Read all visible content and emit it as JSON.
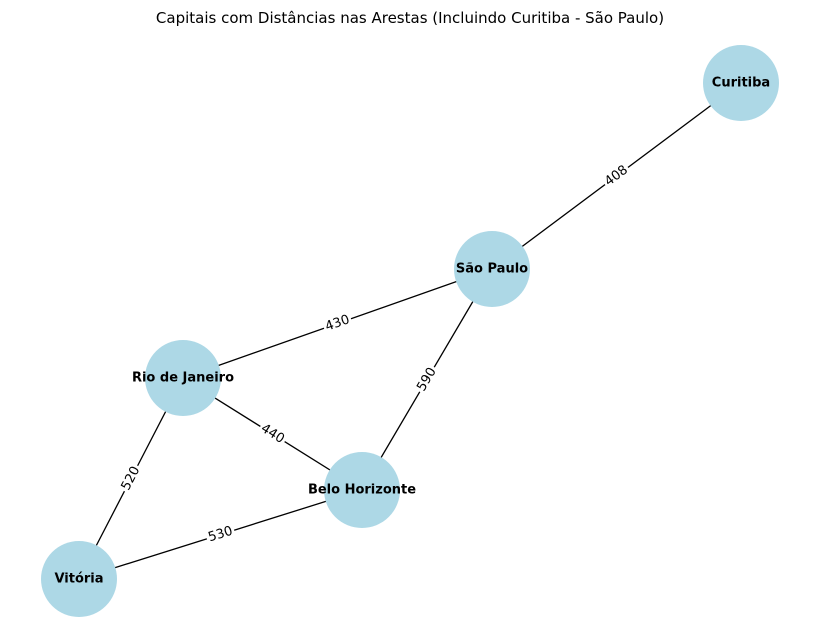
{
  "title": "Capitais com Distâncias nas Arestas (Incluindo Curitiba - São Paulo)",
  "colors": {
    "node_fill": "#add8e6",
    "edge": "#000000",
    "label_bg": "#ffffff",
    "background": "#ffffff"
  },
  "nodes": [
    {
      "id": "curitiba",
      "label": "Curitiba"
    },
    {
      "id": "sao-paulo",
      "label": "São Paulo"
    },
    {
      "id": "rio-de-janeiro",
      "label": "Rio de Janeiro"
    },
    {
      "id": "belo-horizonte",
      "label": "Belo Horizonte"
    },
    {
      "id": "vitoria",
      "label": "Vitória"
    }
  ],
  "edges": [
    {
      "from": "curitiba",
      "to": "sao-paulo",
      "distance": "408"
    },
    {
      "from": "sao-paulo",
      "to": "rio-de-janeiro",
      "distance": "430"
    },
    {
      "from": "sao-paulo",
      "to": "belo-horizonte",
      "distance": "590"
    },
    {
      "from": "rio-de-janeiro",
      "to": "belo-horizonte",
      "distance": "440"
    },
    {
      "from": "rio-de-janeiro",
      "to": "vitoria",
      "distance": "520"
    },
    {
      "from": "belo-horizonte",
      "to": "vitoria",
      "distance": "530"
    }
  ]
}
